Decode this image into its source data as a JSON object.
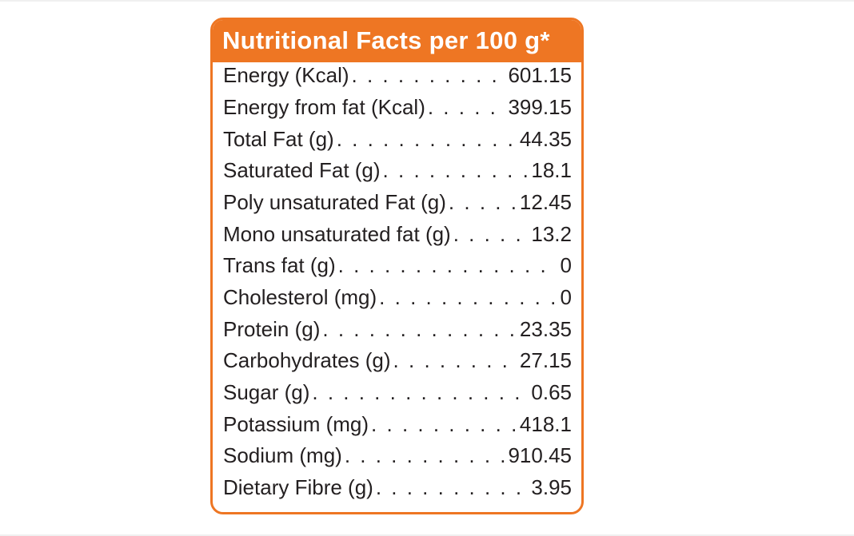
{
  "label": {
    "title": "Nutritional Facts per 100 g*",
    "accent_color": "#ee7623",
    "text_color": "#231f20",
    "rows": [
      {
        "name": "Energy (Kcal)",
        "value": "601.15"
      },
      {
        "name": "Energy from fat (Kcal)",
        "value": "399.15"
      },
      {
        "name": "Total Fat (g)",
        "value": "44.35"
      },
      {
        "name": "Saturated Fat (g)",
        "value": "18.1"
      },
      {
        "name": "Poly unsaturated Fat (g)",
        "value": "12.45"
      },
      {
        "name": "Mono unsaturated fat (g)",
        "value": "13.2"
      },
      {
        "name": "Trans fat (g)",
        "value": "0"
      },
      {
        "name": "Cholesterol (mg)",
        "value": "0"
      },
      {
        "name": "Protein (g)",
        "value": "23.35"
      },
      {
        "name": "Carbohydrates (g)",
        "value": "27.15"
      },
      {
        "name": "Sugar (g)",
        "value": "0.65"
      },
      {
        "name": "Potassium (mg)",
        "value": "418.1"
      },
      {
        "name": "Sodium (mg)",
        "value": "910.45"
      },
      {
        "name": "Dietary Fibre (g)",
        "value": "3.95"
      }
    ]
  }
}
